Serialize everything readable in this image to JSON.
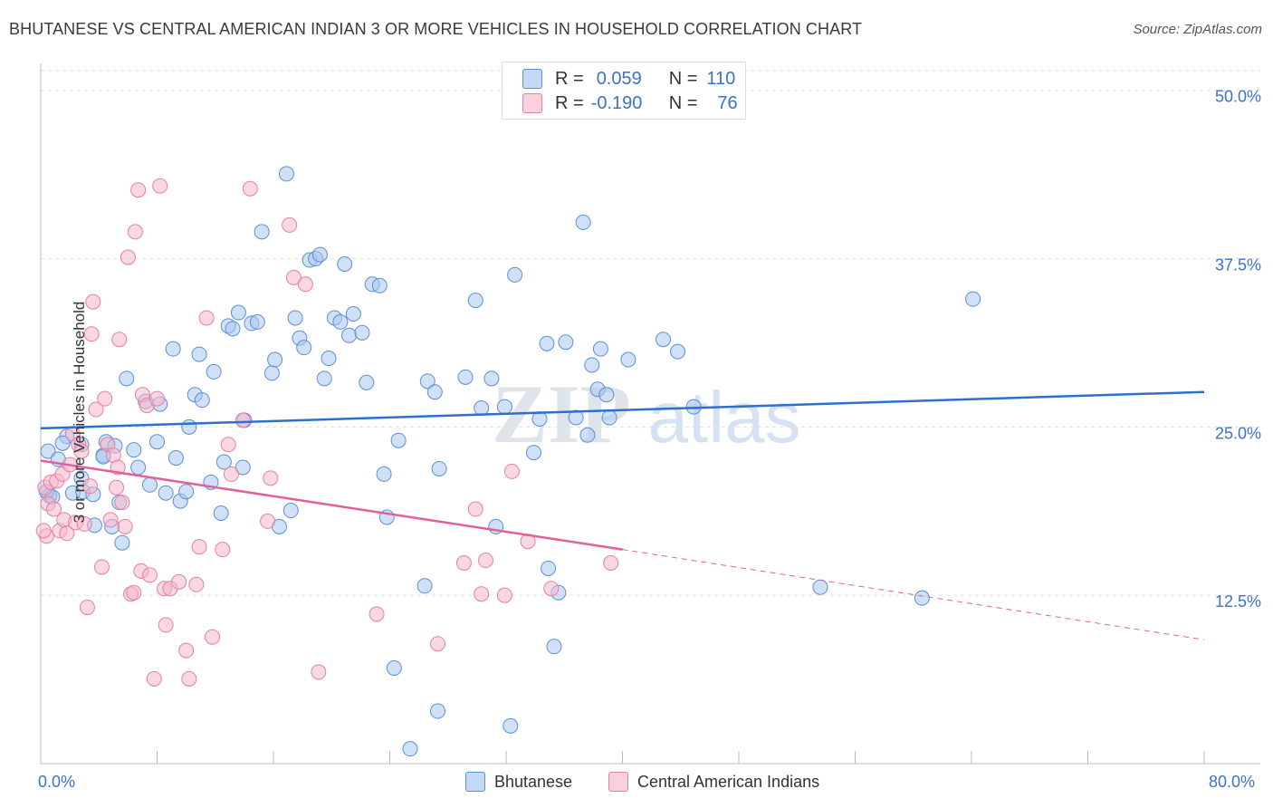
{
  "title": "BHUTANESE VS CENTRAL AMERICAN INDIAN 3 OR MORE VEHICLES IN HOUSEHOLD CORRELATION CHART",
  "source": "Source: ZipAtlas.com",
  "watermark": {
    "zip": "ZIP",
    "atlas": "atlas"
  },
  "legend": {
    "r_label": "R =",
    "n_label": "N =",
    "rows": [
      {
        "r": "0.059",
        "n": "110",
        "color": "#a9c8f0"
      },
      {
        "r": "-0.190",
        "n": "76",
        "color": "#f5b8cc"
      }
    ]
  },
  "bottom_legend": [
    {
      "label": "Bhutanese",
      "color": "#a9c8f0"
    },
    {
      "label": "Central American Indians",
      "color": "#f5b8cc"
    }
  ],
  "chart_data": {
    "type": "scatter",
    "title": "BHUTANESE VS CENTRAL AMERICAN INDIAN 3 OR MORE VEHICLES IN HOUSEHOLD CORRELATION CHART",
    "xlabel": "",
    "ylabel": "3 or more Vehicles in Household",
    "xlim": [
      0,
      80
    ],
    "ylim": [
      0,
      52
    ],
    "x_tick_labels": [
      "0.0%",
      "80.0%"
    ],
    "y_ticks": [
      12.5,
      25.0,
      37.5,
      50.0
    ],
    "y_tick_labels": [
      "12.5%",
      "25.0%",
      "37.5%",
      "50.0%"
    ],
    "grid": "horizontal dashed",
    "legend_position": "top-center",
    "series": [
      {
        "name": "Bhutanese",
        "color": "#a9c8f0",
        "stroke": "#5b8fd6",
        "trend": {
          "x": [
            0,
            80
          ],
          "y": [
            24.9,
            27.6
          ],
          "color": "#2b6fcf"
        },
        "points": [
          [
            0.5,
            23.2
          ],
          [
            0.6,
            19.9
          ],
          [
            0.4,
            20.2
          ],
          [
            1.2,
            22.6
          ],
          [
            1.8,
            24.3
          ],
          [
            1.5,
            23.8
          ],
          [
            2.8,
            23.7
          ],
          [
            2.2,
            20.1
          ],
          [
            2.9,
            20.2
          ],
          [
            3.6,
            20.0
          ],
          [
            2.8,
            21.2
          ],
          [
            3.7,
            17.7
          ],
          [
            4.3,
            22.9
          ],
          [
            4.5,
            23.9
          ],
          [
            4.3,
            22.8
          ],
          [
            5.1,
            23.6
          ],
          [
            4.9,
            17.6
          ],
          [
            5.4,
            19.4
          ],
          [
            5.6,
            16.4
          ],
          [
            5.9,
            28.6
          ],
          [
            6.4,
            23.3
          ],
          [
            6.7,
            22.0
          ],
          [
            7.5,
            20.7
          ],
          [
            7.2,
            26.9
          ],
          [
            8.0,
            23.9
          ],
          [
            8.2,
            26.7
          ],
          [
            8.6,
            20.1
          ],
          [
            9.1,
            30.8
          ],
          [
            9.3,
            22.7
          ],
          [
            9.6,
            19.5
          ],
          [
            10.0,
            20.2
          ],
          [
            10.2,
            25.0
          ],
          [
            10.6,
            27.4
          ],
          [
            10.9,
            30.4
          ],
          [
            11.1,
            27.0
          ],
          [
            11.7,
            20.9
          ],
          [
            11.9,
            29.1
          ],
          [
            12.4,
            18.6
          ],
          [
            12.6,
            22.4
          ],
          [
            12.9,
            32.5
          ],
          [
            13.2,
            32.3
          ],
          [
            13.6,
            33.5
          ],
          [
            13.9,
            22.0
          ],
          [
            14.0,
            25.5
          ],
          [
            14.5,
            32.7
          ],
          [
            14.9,
            32.8
          ],
          [
            15.2,
            39.5
          ],
          [
            15.9,
            29.0
          ],
          [
            16.1,
            30.0
          ],
          [
            16.4,
            17.6
          ],
          [
            16.9,
            43.8
          ],
          [
            17.2,
            18.8
          ],
          [
            17.5,
            33.1
          ],
          [
            17.8,
            31.6
          ],
          [
            18.1,
            30.9
          ],
          [
            18.5,
            37.4
          ],
          [
            18.9,
            37.5
          ],
          [
            19.2,
            37.8
          ],
          [
            19.5,
            28.6
          ],
          [
            19.8,
            30.1
          ],
          [
            20.2,
            33.1
          ],
          [
            20.6,
            32.8
          ],
          [
            20.9,
            37.1
          ],
          [
            21.2,
            31.8
          ],
          [
            21.5,
            33.4
          ],
          [
            22.1,
            32.0
          ],
          [
            22.4,
            28.3
          ],
          [
            22.8,
            35.6
          ],
          [
            23.3,
            35.5
          ],
          [
            23.6,
            21.5
          ],
          [
            23.8,
            18.3
          ],
          [
            24.3,
            7.1
          ],
          [
            24.6,
            24.0
          ],
          [
            25.4,
            1.1
          ],
          [
            26.4,
            13.2
          ],
          [
            26.6,
            28.4
          ],
          [
            27.1,
            27.6
          ],
          [
            27.4,
            21.9
          ],
          [
            27.3,
            3.9
          ],
          [
            29.2,
            28.7
          ],
          [
            29.9,
            34.4
          ],
          [
            30.3,
            26.4
          ],
          [
            31.0,
            28.6
          ],
          [
            31.3,
            17.6
          ],
          [
            31.9,
            26.5
          ],
          [
            32.3,
            2.8
          ],
          [
            32.6,
            36.3
          ],
          [
            33.9,
            23.1
          ],
          [
            34.3,
            25.6
          ],
          [
            34.8,
            31.2
          ],
          [
            34.9,
            14.5
          ],
          [
            35.3,
            8.7
          ],
          [
            35.6,
            12.7
          ],
          [
            36.1,
            31.3
          ],
          [
            36.8,
            25.7
          ],
          [
            37.3,
            40.2
          ],
          [
            37.6,
            24.4
          ],
          [
            37.9,
            29.6
          ],
          [
            38.3,
            27.8
          ],
          [
            38.5,
            30.8
          ],
          [
            38.9,
            27.4
          ],
          [
            39.1,
            25.7
          ],
          [
            40.4,
            30.0
          ],
          [
            42.8,
            31.5
          ],
          [
            43.8,
            30.6
          ],
          [
            44.9,
            26.5
          ],
          [
            53.6,
            13.1
          ],
          [
            60.6,
            12.3
          ],
          [
            64.1,
            34.5
          ],
          [
            0.8,
            19.8
          ]
        ]
      },
      {
        "name": "Central American Indians",
        "color": "#f5b8cc",
        "stroke": "#e87ea1",
        "trend": {
          "x": [
            0,
            40
          ],
          "y": [
            22.5,
            15.9
          ],
          "dash_to": [
            80,
            9.2
          ],
          "color": "#e0609a"
        },
        "points": [
          [
            0.3,
            20.5
          ],
          [
            0.4,
            16.9
          ],
          [
            0.5,
            19.3
          ],
          [
            0.7,
            20.9
          ],
          [
            0.9,
            18.9
          ],
          [
            1.1,
            21.0
          ],
          [
            1.3,
            17.3
          ],
          [
            1.5,
            21.5
          ],
          [
            1.6,
            18.1
          ],
          [
            1.8,
            17.1
          ],
          [
            2.0,
            22.2
          ],
          [
            2.2,
            24.5
          ],
          [
            2.4,
            17.9
          ],
          [
            2.6,
            23.7
          ],
          [
            2.8,
            23.2
          ],
          [
            3.0,
            17.8
          ],
          [
            3.2,
            11.6
          ],
          [
            3.4,
            20.6
          ],
          [
            3.5,
            31.9
          ],
          [
            3.6,
            34.3
          ],
          [
            3.8,
            26.3
          ],
          [
            4.2,
            14.6
          ],
          [
            4.4,
            27.1
          ],
          [
            4.6,
            23.7
          ],
          [
            4.8,
            18.1
          ],
          [
            5.0,
            22.9
          ],
          [
            5.2,
            20.5
          ],
          [
            5.3,
            22.0
          ],
          [
            5.4,
            31.5
          ],
          [
            5.6,
            19.4
          ],
          [
            5.8,
            17.6
          ],
          [
            6.0,
            37.6
          ],
          [
            6.2,
            12.6
          ],
          [
            6.4,
            12.7
          ],
          [
            6.5,
            39.5
          ],
          [
            6.7,
            42.6
          ],
          [
            6.9,
            14.3
          ],
          [
            7.0,
            27.4
          ],
          [
            7.3,
            26.6
          ],
          [
            7.5,
            14.0
          ],
          [
            7.8,
            6.3
          ],
          [
            8.0,
            27.1
          ],
          [
            8.2,
            42.9
          ],
          [
            8.5,
            13.0
          ],
          [
            8.6,
            10.3
          ],
          [
            8.9,
            13.0
          ],
          [
            9.5,
            13.5
          ],
          [
            10.0,
            8.4
          ],
          [
            10.2,
            6.3
          ],
          [
            10.7,
            13.3
          ],
          [
            10.9,
            16.1
          ],
          [
            11.4,
            33.1
          ],
          [
            11.8,
            9.4
          ],
          [
            12.5,
            15.9
          ],
          [
            12.9,
            23.7
          ],
          [
            13.1,
            21.5
          ],
          [
            13.9,
            25.5
          ],
          [
            14.4,
            42.7
          ],
          [
            15.6,
            18.0
          ],
          [
            15.8,
            21.2
          ],
          [
            17.1,
            40.0
          ],
          [
            17.4,
            36.1
          ],
          [
            18.2,
            35.6
          ],
          [
            19.1,
            6.8
          ],
          [
            23.1,
            11.1
          ],
          [
            27.3,
            8.9
          ],
          [
            29.1,
            14.9
          ],
          [
            29.9,
            18.9
          ],
          [
            30.3,
            12.6
          ],
          [
            30.6,
            15.1
          ],
          [
            31.9,
            12.5
          ],
          [
            32.4,
            21.7
          ],
          [
            33.5,
            16.5
          ],
          [
            35.1,
            13.0
          ],
          [
            39.2,
            14.9
          ],
          [
            0.2,
            17.3
          ]
        ]
      }
    ]
  }
}
